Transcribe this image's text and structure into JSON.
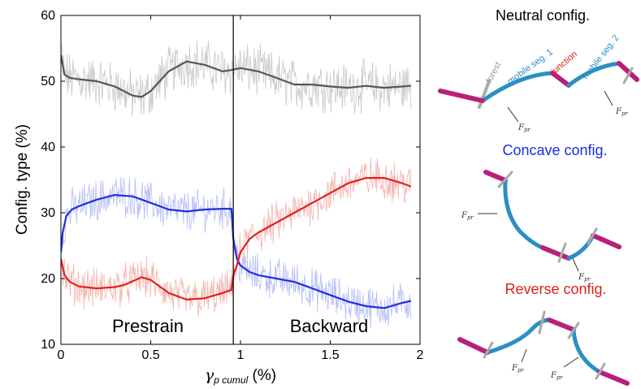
{
  "chart_data": {
    "type": "line",
    "xlabel": "γ p cumul (%)",
    "xlabel_main": "γ",
    "xlabel_sub": "p cumul",
    "xlabel_unit": " (%)",
    "ylabel": "Config. type (%)",
    "xlim": [
      0,
      2
    ],
    "ylim": [
      10,
      60
    ],
    "x_ticks": [
      "0",
      "0.5",
      "1",
      "1.5",
      "2"
    ],
    "y_ticks": [
      "10",
      "20",
      "30",
      "40",
      "50",
      "60"
    ],
    "divider_x": 0.96,
    "regions": [
      "Prestrain",
      "Backward"
    ],
    "grid": false,
    "series": [
      {
        "color": "#555555",
        "noise_color": "#c8c8c8",
        "x": [
          0,
          0.02,
          0.05,
          0.1,
          0.2,
          0.3,
          0.4,
          0.45,
          0.5,
          0.6,
          0.7,
          0.8,
          0.9,
          0.95,
          1.0,
          1.1,
          1.2,
          1.3,
          1.4,
          1.5,
          1.6,
          1.7,
          1.8,
          1.9,
          1.95
        ],
        "values": [
          54,
          51,
          50.5,
          50.3,
          50,
          49.2,
          47.8,
          47.6,
          48.5,
          51.5,
          53,
          52.5,
          51.5,
          51.7,
          52,
          51.5,
          50.5,
          49.5,
          49.5,
          49.2,
          49,
          49.3,
          49,
          49.2,
          49.3
        ]
      },
      {
        "color": "#1f2fe0",
        "noise_color": "#b4bcf7",
        "x": [
          0,
          0.01,
          0.03,
          0.06,
          0.1,
          0.2,
          0.3,
          0.4,
          0.5,
          0.6,
          0.7,
          0.8,
          0.9,
          0.95,
          0.96,
          0.98,
          1.0,
          1.05,
          1.1,
          1.2,
          1.3,
          1.4,
          1.5,
          1.6,
          1.7,
          1.8,
          1.9,
          1.95
        ],
        "values": [
          24,
          27,
          29.5,
          30.5,
          31,
          32,
          32.7,
          32.5,
          31.5,
          30.5,
          30.2,
          30.5,
          30.6,
          30.6,
          26,
          23,
          22,
          21,
          20.5,
          20,
          19.5,
          18.5,
          17.5,
          16.5,
          15.8,
          15.5,
          16.3,
          16.6
        ]
      },
      {
        "color": "#e02020",
        "noise_color": "#f4b3ad",
        "x": [
          0,
          0.02,
          0.05,
          0.1,
          0.2,
          0.3,
          0.35,
          0.45,
          0.5,
          0.6,
          0.7,
          0.8,
          0.9,
          0.95,
          0.96,
          0.98,
          1.0,
          1.05,
          1.1,
          1.2,
          1.3,
          1.4,
          1.5,
          1.6,
          1.7,
          1.8,
          1.9,
          1.95
        ],
        "values": [
          23,
          20.5,
          19.5,
          18.8,
          18.5,
          18.7,
          19,
          20.2,
          19.8,
          17.8,
          16.8,
          17,
          17.8,
          18.3,
          20.5,
          22,
          24,
          26,
          27,
          28.5,
          30,
          31.5,
          33,
          34.5,
          35.3,
          35.3,
          34.5,
          34
        ]
      }
    ]
  },
  "schematic": {
    "neutral_title": "Neutral config.",
    "concave_title": "Concave config.",
    "reverse_title": "Reverse config.",
    "label_forest": "forest",
    "label_mobile1": "mobile seg. 1",
    "label_junction": "junction",
    "label_mobile2": "mobile seg. 2",
    "force_label": "F",
    "force_sub": "pr",
    "colors": {
      "neutral": "#000000",
      "concave": "#1a2ee0",
      "reverse": "#e0201a",
      "mobile": "#2b8fc4",
      "junction": "#b8207a",
      "forest": "#a0a0a0"
    }
  }
}
